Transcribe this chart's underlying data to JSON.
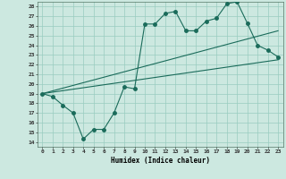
{
  "xlabel": "Humidex (Indice chaleur)",
  "xlim": [
    -0.5,
    23.5
  ],
  "ylim": [
    13.5,
    28.5
  ],
  "xticks": [
    0,
    1,
    2,
    3,
    4,
    5,
    6,
    7,
    8,
    9,
    10,
    11,
    12,
    13,
    14,
    15,
    16,
    17,
    18,
    19,
    20,
    21,
    22,
    23
  ],
  "yticks": [
    14,
    15,
    16,
    17,
    18,
    19,
    20,
    21,
    22,
    23,
    24,
    25,
    26,
    27,
    28
  ],
  "bg_color": "#cce8e0",
  "grid_color": "#99ccc0",
  "line_color": "#1a6b5a",
  "line1_x": [
    0,
    1,
    2,
    3,
    4,
    5,
    6,
    7,
    8,
    9,
    10,
    11,
    12,
    13,
    14,
    15,
    16,
    17,
    18,
    19,
    20,
    21,
    22,
    23
  ],
  "line1_y": [
    19.0,
    18.7,
    17.8,
    17.0,
    14.3,
    15.3,
    15.3,
    17.0,
    19.7,
    19.5,
    26.2,
    26.2,
    27.3,
    27.5,
    25.5,
    25.5,
    26.5,
    26.8,
    28.3,
    28.5,
    26.3,
    24.0,
    23.5,
    22.8
  ],
  "line2_x": [
    0,
    23
  ],
  "line2_y": [
    19.0,
    22.5
  ],
  "line3_x": [
    0,
    23
  ],
  "line3_y": [
    19.0,
    25.5
  ],
  "marker_size": 2.5
}
